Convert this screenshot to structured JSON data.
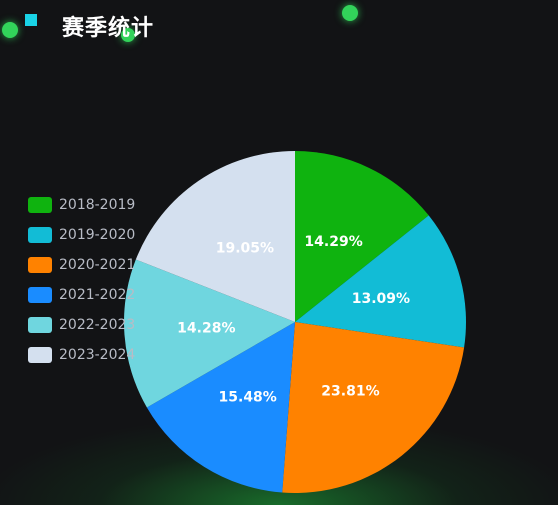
{
  "header": {
    "title": "赛季统计"
  },
  "chart_data": {
    "type": "pie",
    "title": "赛季统计",
    "legend_position": "left",
    "slices": [
      {
        "label": "2018-2019",
        "value": 14.29,
        "display": "14.29%",
        "color": "#0fb30f"
      },
      {
        "label": "2019-2020",
        "value": 13.09,
        "display": "13.09%",
        "color": "#12bcd6"
      },
      {
        "label": "2020-2021",
        "value": 23.81,
        "display": "23.81%",
        "color": "#ff8200"
      },
      {
        "label": "2021-2022",
        "value": 15.48,
        "display": "15.48%",
        "color": "#1a8cff"
      },
      {
        "label": "2022-2023",
        "value": 14.28,
        "display": "14.28%",
        "color": "#6fd6df"
      },
      {
        "label": "2023-2024",
        "value": 19.05,
        "display": "19.05%",
        "color": "#d4e0ef"
      }
    ]
  }
}
